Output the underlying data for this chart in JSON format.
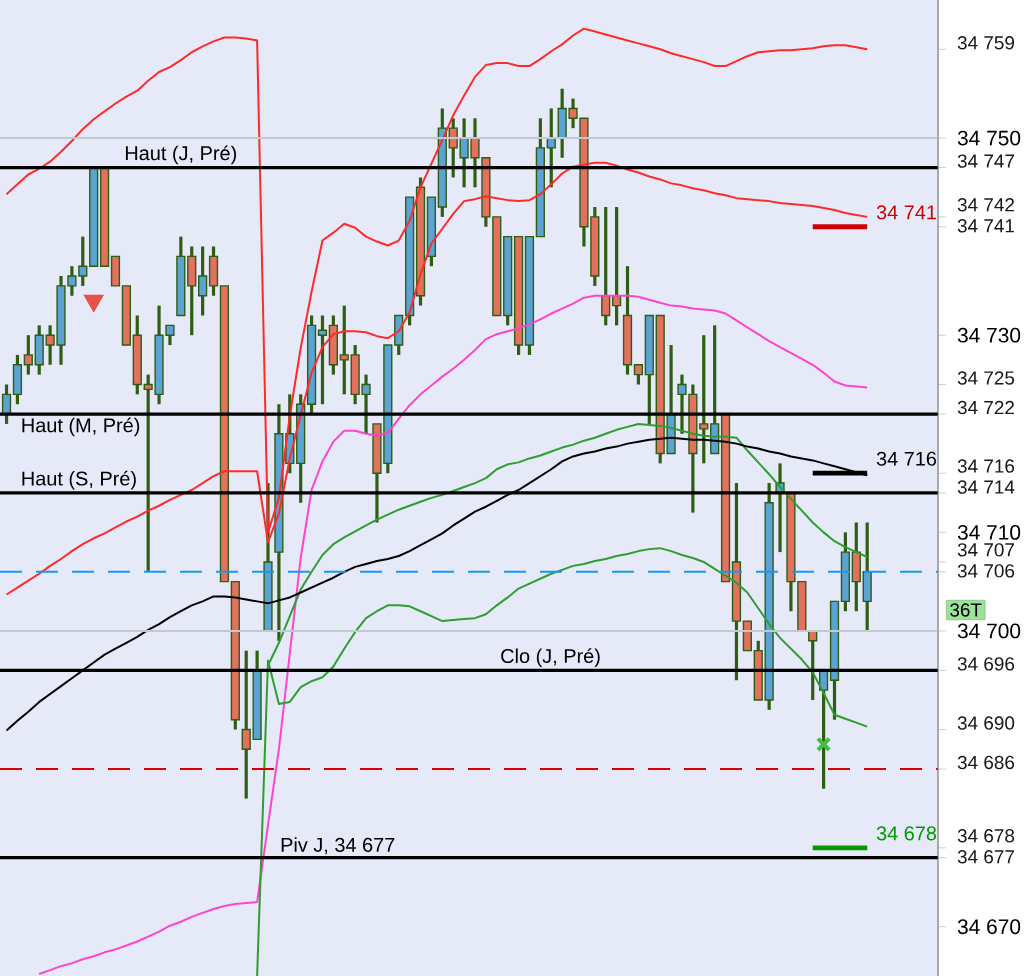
{
  "chart_data": {
    "type": "candlestick",
    "categories": [
      null,
      null,
      null,
      null,
      null,
      null,
      null,
      null,
      null,
      null,
      null,
      null,
      null,
      null,
      null,
      null,
      null,
      null,
      null,
      null,
      null,
      null,
      null,
      null,
      null,
      null,
      null,
      null,
      null,
      null,
      null,
      null,
      null,
      null,
      null,
      null,
      null,
      null,
      null,
      null,
      null,
      null,
      null,
      null,
      null,
      null,
      null,
      null,
      null,
      null,
      null,
      null,
      null,
      null,
      null,
      null,
      null,
      null,
      null,
      null,
      null,
      null,
      null,
      null,
      null,
      null,
      null,
      null,
      null,
      null,
      null,
      null,
      null,
      null,
      null,
      null,
      null,
      null,
      null,
      null
    ],
    "ohlc": [
      [
        34722,
        34725,
        34721,
        34724
      ],
      [
        34724,
        34728,
        34723,
        34727
      ],
      [
        34728,
        34730,
        34726,
        34727
      ],
      [
        34727,
        34731,
        34726,
        34730
      ],
      [
        34730,
        34731,
        34727,
        34729
      ],
      [
        34729,
        34736,
        34727,
        34735
      ],
      [
        34735,
        34737,
        34734,
        34736
      ],
      [
        34736,
        34740,
        34735,
        34737
      ],
      [
        34737,
        34747,
        34737,
        34747
      ],
      [
        34747,
        34747,
        34737,
        34737
      ],
      [
        34738,
        34738,
        34735,
        34735
      ],
      [
        34735,
        34735,
        34729,
        34729
      ],
      [
        34730,
        34732,
        34724,
        34725
      ],
      [
        34725,
        34726,
        34706,
        34724.5
      ],
      [
        34724,
        34733,
        34723,
        34730
      ],
      [
        34730,
        34731,
        34729,
        34731
      ],
      [
        34732,
        34740,
        34732,
        34738
      ],
      [
        34738,
        34739,
        34730,
        34735
      ],
      [
        34734,
        34739,
        34732,
        34736
      ],
      [
        34738,
        34739,
        34734,
        34735
      ],
      [
        34735,
        34735,
        34705,
        34705
      ],
      [
        34705,
        34705,
        34690,
        34691
      ],
      [
        34690,
        34698,
        34683,
        34688
      ],
      [
        34689,
        34698,
        34689,
        34696
      ],
      [
        34700,
        34715,
        34700,
        34707
      ],
      [
        34708,
        34723,
        34699,
        34720
      ],
      [
        34717,
        34724,
        34716,
        34720
      ],
      [
        34717,
        34724,
        34713,
        34723
      ],
      [
        34723,
        34732,
        34722,
        34731
      ],
      [
        34730,
        34732,
        34723,
        34730.5
      ],
      [
        34731,
        34732,
        34726,
        34727
      ],
      [
        34728,
        34733,
        34724,
        34727.5
      ],
      [
        34728,
        34729,
        34723,
        34724
      ],
      [
        34724,
        34726,
        34720,
        34725
      ],
      [
        34721,
        34721,
        34711,
        34716
      ],
      [
        34717,
        34729,
        34716,
        34729
      ],
      [
        34729,
        34732,
        34728,
        34732
      ],
      [
        34732,
        34744,
        34731,
        34744
      ],
      [
        34745,
        34746,
        34733,
        34734
      ],
      [
        34738,
        34744,
        34737,
        34744
      ],
      [
        34743,
        34753,
        34742,
        34751
      ],
      [
        34751,
        34752,
        34746,
        34749
      ],
      [
        34748,
        34752,
        34745,
        34750
      ],
      [
        34750,
        34752,
        34745,
        34748
      ],
      [
        34748,
        34748,
        34741,
        34742
      ],
      [
        34742,
        34742,
        34732,
        34732
      ],
      [
        34732,
        34740,
        34731,
        34740
      ],
      [
        34740,
        34740,
        34728,
        34729
      ],
      [
        34729,
        34740,
        34728,
        34740
      ],
      [
        34740,
        34752,
        34740,
        34749
      ],
      [
        34749,
        34753,
        34745,
        34750
      ],
      [
        34750,
        34755,
        34748,
        34753
      ],
      [
        34753,
        34754,
        34751,
        34752
      ],
      [
        34752,
        34752,
        34739,
        34741
      ],
      [
        34742,
        34743,
        34735,
        34736
      ],
      [
        34734,
        34743,
        34731,
        34732
      ],
      [
        34734,
        34743,
        34731,
        34733
      ],
      [
        34732,
        34737,
        34726,
        34727
      ],
      [
        34727,
        34727,
        34725,
        34726
      ],
      [
        34726,
        34732,
        34721,
        34732
      ],
      [
        34732,
        34732,
        34717,
        34718
      ],
      [
        34718,
        34729,
        34718,
        34722
      ],
      [
        34724,
        34726,
        34720,
        34725
      ],
      [
        34724,
        34725,
        34712,
        34718
      ],
      [
        34721,
        34730,
        34717,
        34720.5
      ],
      [
        34718,
        34731,
        34718,
        34721
      ],
      [
        34722,
        34722,
        34705,
        34705
      ],
      [
        34707,
        34715,
        34695,
        34701
      ],
      [
        34701,
        34701,
        34698,
        34698
      ],
      [
        34698,
        34699,
        34693,
        34693
      ],
      [
        34693,
        34715,
        34692,
        34713
      ],
      [
        34714,
        34717,
        34708,
        34715
      ],
      [
        34714,
        34714,
        34702,
        34705
      ],
      [
        34705,
        34705,
        34700,
        34700
      ],
      [
        34700,
        34700,
        34693,
        34699
      ],
      [
        34694,
        34696,
        34684,
        34696
      ],
      [
        34695,
        34703,
        34691,
        34703
      ],
      [
        34703,
        34710,
        34702,
        34708
      ],
      [
        34708,
        34711,
        34702,
        34705
      ],
      [
        34703,
        34711,
        34700,
        34706
      ]
    ],
    "series": [
      {
        "type": "line",
        "color": "#ff2a2a",
        "values": [
          34744.3,
          34745.3,
          34746.3,
          34746.9,
          34747.6,
          34748.6,
          34749.7,
          34750.9,
          34751.9,
          34752.7,
          34753.5,
          34754.2,
          34754.8,
          34755.8,
          34756.7,
          34757.2,
          34757.9,
          34758.7,
          34759.3,
          34759.8,
          34760.2,
          34760.2,
          34760.1,
          34759.9,
          34710,
          34713.5,
          34721.8,
          34728.7,
          34734.4,
          34739.6,
          34740.4,
          34741.3,
          34740.9,
          34740,
          34739.5,
          34739.1,
          34739.6,
          34741.6,
          34745,
          34747.4,
          34749.8,
          34752.3,
          34754.3,
          34756.2,
          34757.4,
          34757.6,
          34757.6,
          34757.3,
          34757.3,
          34758,
          34758.8,
          34759.5,
          34760.4,
          34761.1,
          34760.8,
          34760.5,
          34760.2,
          34759.9,
          34759.6,
          34759.3,
          34759,
          34758.6,
          34758.3,
          34758,
          34757.7,
          34757.3,
          34757.3,
          34757.8,
          34758.3,
          34758.7,
          34758.8,
          34758.9,
          34758.9,
          34759,
          34759.1,
          34759.3,
          34759.4,
          34759.4,
          34759.2,
          34759
        ]
      },
      {
        "type": "line",
        "color": "#ff2a2a",
        "values": [
          34703.7,
          34704.4,
          34705.1,
          34705.8,
          34706.6,
          34707.3,
          34708.1,
          34708.8,
          34709.4,
          34709.9,
          34710.5,
          34711.1,
          34711.6,
          34712.2,
          34712.7,
          34713.3,
          34713.8,
          34714.3,
          34715,
          34715.7,
          34716.2,
          34716.2,
          34716.2,
          34716.2,
          34709,
          34711.9,
          34717.5,
          34721.9,
          34726.2,
          34728.8,
          34730.1,
          34730.4,
          34730.4,
          34730.3,
          34729.9,
          34729.7,
          34730.4,
          34732.3,
          34736.2,
          34739.3,
          34740.8,
          34742.3,
          34743.6,
          34743.8,
          34744.1,
          34743.9,
          34743.7,
          34743.6,
          34743.7,
          34744.3,
          34745.3,
          34746.4,
          34747.1,
          34747.3,
          34747.5,
          34747.5,
          34747.2,
          34746.8,
          34746.5,
          34746.1,
          34745.8,
          34745.4,
          34745.2,
          34744.9,
          34744.7,
          34744.4,
          34744.2,
          34743.9,
          34743.8,
          34743.7,
          34743.6,
          34743.4,
          34743.3,
          34743.2,
          34743.1,
          34742.9,
          34742.7,
          34742.4,
          34742.2,
          34742
        ]
      },
      {
        "type": "line",
        "color": "#ff44cc",
        "values": [
          null,
          null,
          null,
          34665.2,
          34665.6,
          34666,
          34666.3,
          34666.7,
          34667,
          34667.4,
          34667.7,
          34668.1,
          34668.5,
          34669,
          34669.5,
          34670.1,
          34670.5,
          34671,
          34671.4,
          34671.8,
          34672.1,
          34672.3,
          34672.4,
          34672.5,
          34680.3,
          34688,
          34697.7,
          34707.4,
          34714.3,
          34717.2,
          34719.2,
          34720.3,
          34720.3,
          34720,
          34719.8,
          34720.1,
          34721.5,
          34722.9,
          34724,
          34724.9,
          34725.8,
          34726.6,
          34727.5,
          34728.5,
          34729.6,
          34730.1,
          34730.4,
          34730.7,
          34731.1,
          34731.6,
          34732.2,
          34732.7,
          34733.2,
          34733.8,
          34734,
          34734,
          34734,
          34734,
          34733.9,
          34733.6,
          34733.3,
          34733,
          34732.9,
          34732.7,
          34732.6,
          34732.5,
          34732.2,
          34731.5,
          34730.8,
          34730.1,
          34729.4,
          34728.8,
          34728.2,
          34727.6,
          34727,
          34726.2,
          34725.3,
          34724.9,
          34724.8,
          34724.7
        ]
      },
      {
        "type": "line",
        "color": "#2e9e2e",
        "values": [
          null,
          null,
          null,
          null,
          null,
          null,
          null,
          null,
          null,
          null,
          null,
          null,
          null,
          null,
          null,
          null,
          null,
          null,
          null,
          null,
          null,
          null,
          null,
          null,
          34696.5,
          34698.8,
          34701.5,
          34704.2,
          34706,
          34707.7,
          34708.8,
          34709.5,
          34710.1,
          34710.7,
          34711.3,
          34711.8,
          34712.3,
          34712.7,
          34713.1,
          34713.5,
          34713.8,
          34714.2,
          34714.6,
          34715,
          34715.5,
          34716.4,
          34716.9,
          34717.1,
          34717.5,
          34717.8,
          34718.2,
          34718.6,
          34718.9,
          34719.3,
          34719.6,
          34720,
          34720.4,
          34720.7,
          34721,
          34720.9,
          34720.8,
          34720.6,
          34720.3,
          34720,
          34719.8,
          34719.7,
          34719.7,
          34719.6,
          34718.3,
          34717.1,
          34715.9,
          34714.6,
          34713.4,
          34712.2,
          34711,
          34710,
          34709.1,
          34708.5,
          34708,
          34707.5
        ]
      },
      {
        "type": "line",
        "color": "#2e9e2e",
        "values": [
          null,
          null,
          null,
          null,
          null,
          null,
          null,
          null,
          null,
          null,
          null,
          null,
          null,
          null,
          null,
          null,
          null,
          null,
          null,
          null,
          null,
          null,
          null,
          34665,
          34697,
          34692.6,
          34692.8,
          34694.3,
          34694.9,
          34695.3,
          34696.4,
          34698.2,
          34699.9,
          34701.3,
          34702,
          34702.6,
          34702.6,
          34702.5,
          34702,
          34701.5,
          34701,
          34701.1,
          34701.2,
          34701.3,
          34701.7,
          34702.6,
          34703.4,
          34704.3,
          34704.8,
          34705.3,
          34705.8,
          34706.2,
          34706.6,
          34706.8,
          34707.1,
          34707.3,
          34707.6,
          34707.8,
          34708.1,
          34708.3,
          34708.4,
          34708.1,
          34707.7,
          34707.4,
          34707,
          34706.3,
          34705.6,
          34704.9,
          34703.9,
          34702.3,
          34700.7,
          34699.3,
          34698.2,
          34697.1,
          34695.8,
          34693.7,
          34691.5,
          34691.1,
          34690.7,
          34690.3
        ]
      },
      {
        "type": "line",
        "color": "#000000",
        "values": [
          34689.9,
          34690.9,
          34691.8,
          34692.8,
          34693.6,
          34694.4,
          34695.2,
          34696,
          34696.8,
          34697.6,
          34698.2,
          34698.8,
          34699.4,
          34700.1,
          34700.7,
          34701.4,
          34702,
          34702.6,
          34703,
          34703.5,
          34703.5,
          34703.4,
          34703.2,
          34703,
          34702.8,
          34703.1,
          34703.4,
          34703.9,
          34704.4,
          34704.9,
          34705.4,
          34706,
          34706.5,
          34706.8,
          34707.1,
          34707.3,
          34707.6,
          34708.1,
          34708.7,
          34709.3,
          34709.9,
          34710.7,
          34711.4,
          34712.1,
          34712.6,
          34713.2,
          34713.8,
          34714.3,
          34715,
          34715.7,
          34716.4,
          34717.2,
          34717.7,
          34718,
          34718.2,
          34718.5,
          34718.7,
          34719,
          34719.2,
          34719.4,
          34719.5,
          34719.6,
          34719.5,
          34719.4,
          34719.4,
          34719.3,
          34719.2,
          34719,
          34718.7,
          34718.5,
          34718.2,
          34718,
          34717.7,
          34717.5,
          34717.3,
          34717,
          34716.7,
          34716.4,
          34716.1,
          34715.8
        ]
      },
      {
        "type": "line",
        "name": "34 741",
        "color": "#cc0000",
        "values": [
          null,
          null,
          null,
          null,
          null,
          null,
          null,
          null,
          null,
          null,
          null,
          null,
          null,
          null,
          null,
          null,
          null,
          null,
          null,
          null,
          null,
          null,
          null,
          null,
          null,
          null,
          null,
          null,
          null,
          null,
          null,
          null,
          null,
          null,
          null,
          null,
          null,
          null,
          null,
          null,
          null,
          null,
          null,
          null,
          null,
          null,
          null,
          null,
          null,
          null,
          null,
          null,
          null,
          null,
          null,
          null,
          null,
          null,
          null,
          null,
          null,
          null,
          null,
          null,
          null,
          null,
          null,
          null,
          null,
          null,
          null,
          null,
          null,
          null,
          34741,
          34741,
          34741,
          34741,
          34741,
          34741
        ]
      },
      {
        "type": "line",
        "name": "34 716",
        "color": "#000000",
        "values": [
          null,
          null,
          null,
          null,
          null,
          null,
          null,
          null,
          null,
          null,
          null,
          null,
          null,
          null,
          null,
          null,
          null,
          null,
          null,
          null,
          null,
          null,
          null,
          null,
          null,
          null,
          null,
          null,
          null,
          null,
          null,
          null,
          null,
          null,
          null,
          null,
          null,
          null,
          null,
          null,
          null,
          null,
          null,
          null,
          null,
          null,
          null,
          null,
          null,
          null,
          null,
          null,
          null,
          null,
          null,
          null,
          null,
          null,
          null,
          null,
          null,
          null,
          null,
          null,
          null,
          null,
          null,
          null,
          null,
          null,
          null,
          null,
          null,
          null,
          34716,
          34716,
          34716,
          34716,
          34716,
          34716
        ]
      },
      {
        "type": "line",
        "name": "34 678",
        "color": "#009900",
        "values": [
          null,
          null,
          null,
          null,
          null,
          null,
          null,
          null,
          null,
          null,
          null,
          null,
          null,
          null,
          null,
          null,
          null,
          null,
          null,
          null,
          null,
          null,
          null,
          null,
          null,
          null,
          null,
          null,
          null,
          null,
          null,
          null,
          null,
          null,
          null,
          null,
          null,
          null,
          null,
          null,
          null,
          null,
          null,
          null,
          null,
          null,
          null,
          null,
          null,
          null,
          null,
          null,
          null,
          null,
          null,
          null,
          null,
          null,
          null,
          null,
          null,
          null,
          null,
          null,
          null,
          null,
          null,
          null,
          null,
          null,
          null,
          null,
          null,
          null,
          34678,
          34678,
          34678,
          34678,
          34678,
          34678
        ]
      },
      {
        "type": "scatter",
        "marker": "cross",
        "color": "#44bb44",
        "values": [
          null,
          null,
          null,
          null,
          null,
          null,
          null,
          null,
          null,
          null,
          null,
          null,
          null,
          null,
          null,
          null,
          null,
          null,
          null,
          null,
          null,
          null,
          null,
          null,
          null,
          null,
          null,
          null,
          null,
          null,
          null,
          null,
          null,
          null,
          null,
          null,
          null,
          null,
          null,
          null,
          null,
          null,
          null,
          null,
          null,
          null,
          null,
          null,
          null,
          null,
          null,
          null,
          null,
          null,
          null,
          null,
          null,
          null,
          null,
          null,
          null,
          null,
          null,
          null,
          null,
          null,
          null,
          null,
          null,
          null,
          null,
          null,
          null,
          null,
          null,
          34688.5,
          null,
          null,
          null,
          null
        ]
      },
      {
        "type": "scatter",
        "marker": "triangle",
        "color": "#e8504a",
        "values": [
          null,
          null,
          null,
          null,
          null,
          null,
          null,
          null,
          34733.5,
          null,
          null,
          null,
          null,
          null,
          null,
          null,
          null,
          null,
          null,
          null,
          null,
          null,
          null,
          null,
          null,
          null,
          null,
          null,
          null,
          null,
          null,
          null,
          null,
          null,
          null,
          null,
          null,
          null,
          null,
          null,
          null,
          null,
          null,
          null,
          null,
          null,
          null,
          null,
          null,
          null,
          null,
          null,
          null,
          null,
          null,
          null,
          null,
          null,
          null,
          null,
          null,
          null,
          null,
          null,
          null,
          null,
          null,
          null,
          null,
          null,
          null,
          null,
          null,
          null,
          null,
          null,
          null,
          null,
          null,
          null
        ]
      }
    ],
    "ref_lines": [
      {
        "axis": "y",
        "value": 34750,
        "color": "#c4c8d0"
      },
      {
        "axis": "y",
        "value": 34700,
        "color": "#c4c8d0"
      },
      {
        "axis": "y",
        "value": 34747,
        "label": "Haut (J, Pré)",
        "color": "#000000"
      },
      {
        "axis": "y",
        "value": 34722,
        "label": "Haut (M, Pré)",
        "color": "#000000"
      },
      {
        "axis": "y",
        "value": 34714,
        "label": "Haut (S, Pré)",
        "color": "#000000"
      },
      {
        "axis": "y",
        "value": 34696,
        "label": "Clo (J, Pré)",
        "color": "#000000"
      },
      {
        "axis": "y",
        "value": 34677,
        "label": "Piv J, 34 677",
        "color": "#000000"
      },
      {
        "axis": "y",
        "value": 34706,
        "color": "#1a98f0",
        "line_style": "dashed"
      },
      {
        "axis": "y",
        "value": 34686,
        "color": "#dd0000",
        "line_style": "dashed"
      }
    ],
    "annotations": [
      "36T"
    ],
    "ylim": [
      34665,
      34764
    ],
    "yticks": [
      {
        "value": 34670,
        "label": "34 670"
      },
      {
        "value": 34700,
        "label": "34 700"
      },
      {
        "value": 34710,
        "label": "34 710"
      },
      {
        "value": 34730,
        "label": "34 730"
      },
      {
        "value": 34750,
        "label": "34 750"
      }
    ],
    "y2lim": [
      34665,
      34764
    ],
    "y2ticks": [
      {
        "value": 34677,
        "label": "34 677"
      },
      {
        "value": 34678,
        "label": "34 678"
      },
      {
        "value": 34686,
        "label": "34 686"
      },
      {
        "value": 34690,
        "label": "34 690"
      },
      {
        "value": 34696,
        "label": "34 696"
      },
      {
        "value": 34706,
        "label": "34 706"
      },
      {
        "value": 34707,
        "label": "34 707"
      },
      {
        "value": 34714,
        "label": "34 714"
      },
      {
        "value": 34716,
        "label": "34 716"
      },
      {
        "value": 34722,
        "label": "34 722"
      },
      {
        "value": 34725,
        "label": "34 725"
      },
      {
        "value": 34741,
        "label": "34 741"
      },
      {
        "value": 34742,
        "label": "34 742"
      },
      {
        "value": 34747,
        "label": "34 747"
      },
      {
        "value": 34759,
        "label": "34 759"
      }
    ]
  }
}
